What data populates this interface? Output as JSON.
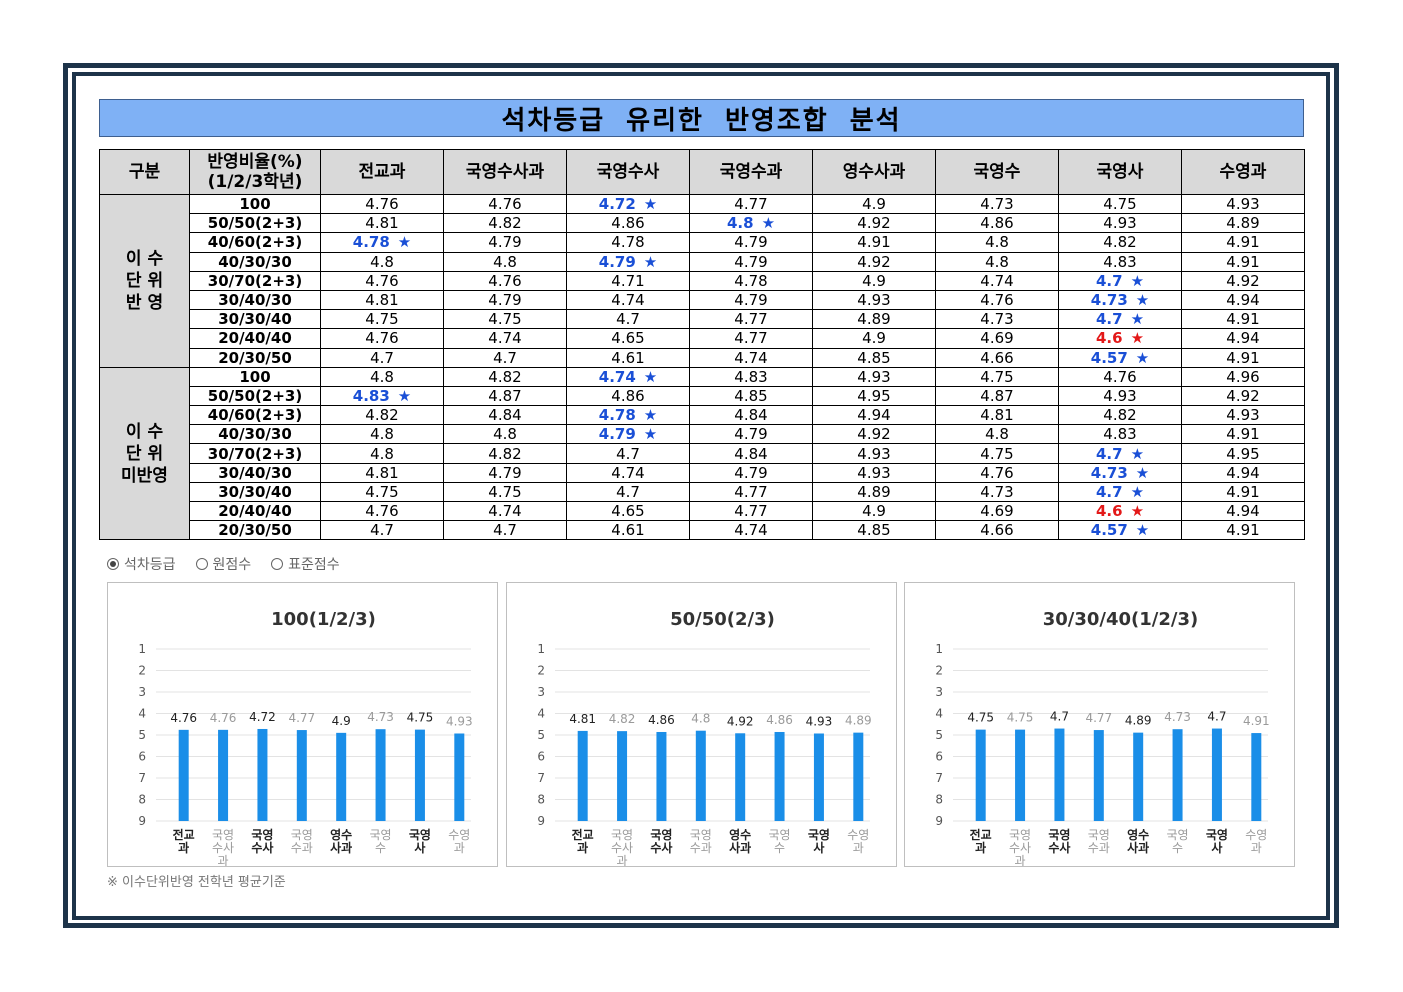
{
  "title": "석차등급 유리한 반영조합 분석",
  "header": [
    "구분",
    "반영비율(%)\n(1/2/3학년)",
    "전교과",
    "국영수사과",
    "국영수사",
    "국영수과",
    "영수사과",
    "국영수",
    "국영사",
    "수영과"
  ],
  "groups": [
    {
      "label": "이 수\n단 위\n반 영",
      "rows": [
        {
          "label": "100",
          "values": [
            "4.76",
            "4.76",
            "4.72",
            "4.77",
            "4.9",
            "4.73",
            "4.75",
            "4.93"
          ],
          "hl": {
            "2": "blue"
          }
        },
        {
          "label": "50/50(2+3)",
          "values": [
            "4.81",
            "4.82",
            "4.86",
            "4.8",
            "4.92",
            "4.86",
            "4.93",
            "4.89"
          ],
          "hl": {
            "3": "blue"
          }
        },
        {
          "label": "40/60(2+3)",
          "values": [
            "4.78",
            "4.79",
            "4.78",
            "4.79",
            "4.91",
            "4.8",
            "4.82",
            "4.91"
          ],
          "hl": {
            "0": "blue"
          }
        },
        {
          "label": "40/30/30",
          "values": [
            "4.8",
            "4.8",
            "4.79",
            "4.79",
            "4.92",
            "4.8",
            "4.83",
            "4.91"
          ],
          "hl": {
            "2": "blue"
          }
        },
        {
          "label": "30/70(2+3)",
          "values": [
            "4.76",
            "4.76",
            "4.71",
            "4.78",
            "4.9",
            "4.74",
            "4.7",
            "4.92"
          ],
          "hl": {
            "6": "blue"
          }
        },
        {
          "label": "30/40/30",
          "values": [
            "4.81",
            "4.79",
            "4.74",
            "4.79",
            "4.93",
            "4.76",
            "4.73",
            "4.94"
          ],
          "hl": {
            "6": "blue"
          }
        },
        {
          "label": "30/30/40",
          "values": [
            "4.75",
            "4.75",
            "4.7",
            "4.77",
            "4.89",
            "4.73",
            "4.7",
            "4.91"
          ],
          "hl": {
            "6": "blue"
          }
        },
        {
          "label": "20/40/40",
          "values": [
            "4.76",
            "4.74",
            "4.65",
            "4.77",
            "4.9",
            "4.69",
            "4.6",
            "4.94"
          ],
          "hl": {
            "6": "red"
          }
        },
        {
          "label": "20/30/50",
          "values": [
            "4.7",
            "4.7",
            "4.61",
            "4.74",
            "4.85",
            "4.66",
            "4.57",
            "4.91"
          ],
          "hl": {
            "6": "blue"
          }
        }
      ]
    },
    {
      "label": "이 수\n단 위\n미반영",
      "rows": [
        {
          "label": "100",
          "values": [
            "4.8",
            "4.82",
            "4.74",
            "4.83",
            "4.93",
            "4.75",
            "4.76",
            "4.96"
          ],
          "hl": {
            "2": "blue"
          }
        },
        {
          "label": "50/50(2+3)",
          "values": [
            "4.83",
            "4.87",
            "4.86",
            "4.85",
            "4.95",
            "4.87",
            "4.93",
            "4.92"
          ],
          "hl": {
            "0": "blue"
          }
        },
        {
          "label": "40/60(2+3)",
          "values": [
            "4.82",
            "4.84",
            "4.78",
            "4.84",
            "4.94",
            "4.81",
            "4.82",
            "4.93"
          ],
          "hl": {
            "2": "blue"
          }
        },
        {
          "label": "40/30/30",
          "values": [
            "4.8",
            "4.8",
            "4.79",
            "4.79",
            "4.92",
            "4.8",
            "4.83",
            "4.91"
          ],
          "hl": {
            "2": "blue"
          }
        },
        {
          "label": "30/70(2+3)",
          "values": [
            "4.8",
            "4.82",
            "4.7",
            "4.84",
            "4.93",
            "4.75",
            "4.7",
            "4.95"
          ],
          "hl": {
            "6": "blue"
          }
        },
        {
          "label": "30/40/30",
          "values": [
            "4.81",
            "4.79",
            "4.74",
            "4.79",
            "4.93",
            "4.76",
            "4.73",
            "4.94"
          ],
          "hl": {
            "6": "blue"
          }
        },
        {
          "label": "30/30/40",
          "values": [
            "4.75",
            "4.75",
            "4.7",
            "4.77",
            "4.89",
            "4.73",
            "4.7",
            "4.91"
          ],
          "hl": {
            "6": "blue"
          }
        },
        {
          "label": "20/40/40",
          "values": [
            "4.76",
            "4.74",
            "4.65",
            "4.77",
            "4.9",
            "4.69",
            "4.6",
            "4.94"
          ],
          "hl": {
            "6": "red"
          }
        },
        {
          "label": "20/30/50",
          "values": [
            "4.7",
            "4.7",
            "4.61",
            "4.74",
            "4.85",
            "4.66",
            "4.57",
            "4.91"
          ],
          "hl": {
            "6": "blue"
          }
        }
      ]
    }
  ],
  "star_glyph": "★",
  "radio_options": [
    {
      "label": "석차등급",
      "selected": true
    },
    {
      "label": "원점수",
      "selected": false
    },
    {
      "label": "표준점수",
      "selected": false
    }
  ],
  "footnote": "※ 이수단위반영 전학년 평균기준",
  "colors": {
    "title_bg": "#7fb1f5",
    "bar": "#1a8ee8",
    "highlight_blue": "#1a4fd6",
    "highlight_red": "#e31818",
    "frame": "#1d3349"
  },
  "chart_data": [
    {
      "type": "bar",
      "title": "100(1/2/3)",
      "categories": [
        "전교\n과",
        "국영\n수사\n과",
        "국영\n수사",
        "국영\n수과",
        "영수\n사과",
        "국영\n수",
        "국영\n사",
        "수영\n과"
      ],
      "values": [
        4.76,
        4.76,
        4.72,
        4.77,
        4.9,
        4.73,
        4.75,
        4.93
      ],
      "emphasized": [
        true,
        false,
        true,
        false,
        true,
        false,
        true,
        false
      ],
      "yticks": [
        1,
        2,
        3,
        4,
        5,
        6,
        7,
        8,
        9
      ],
      "ylim": [
        1,
        9
      ],
      "y_inverted": true,
      "grid": true
    },
    {
      "type": "bar",
      "title": "50/50(2/3)",
      "categories": [
        "전교\n과",
        "국영\n수사\n과",
        "국영\n수사",
        "국영\n수과",
        "영수\n사과",
        "국영\n수",
        "국영\n사",
        "수영\n과"
      ],
      "values": [
        4.81,
        4.82,
        4.86,
        4.8,
        4.92,
        4.86,
        4.93,
        4.89
      ],
      "emphasized": [
        true,
        false,
        true,
        false,
        true,
        false,
        true,
        false
      ],
      "yticks": [
        1,
        2,
        3,
        4,
        5,
        6,
        7,
        8,
        9
      ],
      "ylim": [
        1,
        9
      ],
      "y_inverted": true,
      "grid": true
    },
    {
      "type": "bar",
      "title": "30/30/40(1/2/3)",
      "categories": [
        "전교\n과",
        "국영\n수사\n과",
        "국영\n수사",
        "국영\n수과",
        "영수\n사과",
        "국영\n수",
        "국영\n사",
        "수영\n과"
      ],
      "values": [
        4.75,
        4.75,
        4.7,
        4.77,
        4.89,
        4.73,
        4.7,
        4.91
      ],
      "emphasized": [
        true,
        false,
        true,
        false,
        true,
        false,
        true,
        false
      ],
      "yticks": [
        1,
        2,
        3,
        4,
        5,
        6,
        7,
        8,
        9
      ],
      "ylim": [
        1,
        9
      ],
      "y_inverted": true,
      "grid": true
    }
  ]
}
